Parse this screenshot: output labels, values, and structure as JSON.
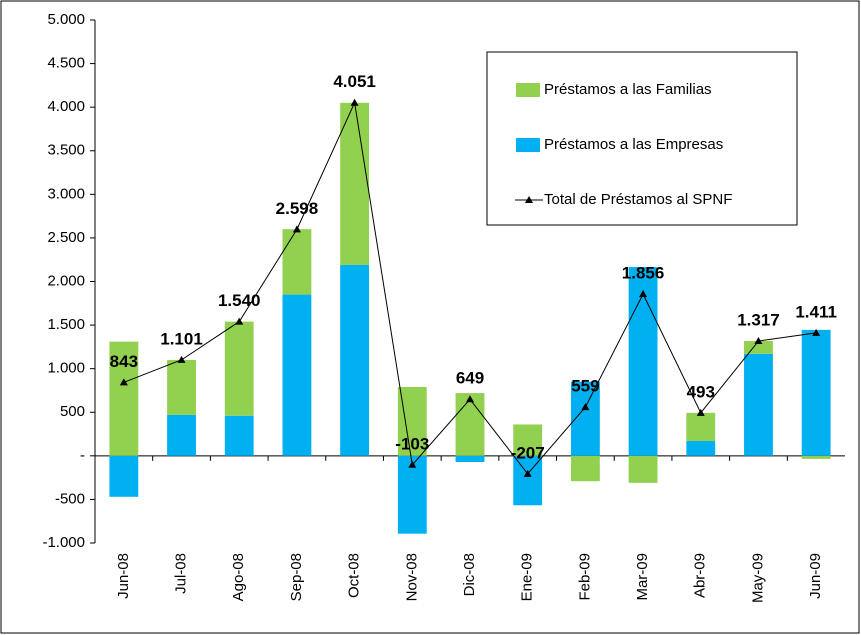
{
  "chart_data": {
    "type": "bar",
    "stacked": true,
    "categories": [
      "Jun-08",
      "Jul-08",
      "Ago-08",
      "Sep-08",
      "Oct-08",
      "Nov-08",
      "Dic-08",
      "Ene-09",
      "Feb-09",
      "Mar-09",
      "Abr-09",
      "May-09",
      "Jun-09"
    ],
    "series": [
      {
        "name": "Préstamos a las Familias",
        "type": "bar",
        "color": "#92d050",
        "values": [
          1310,
          630,
          1080,
          750,
          1860,
          790,
          720,
          360,
          -291,
          -310,
          323,
          147,
          -35
        ]
      },
      {
        "name": "Préstamos a las Empresas",
        "type": "bar",
        "color": "#00b0f0",
        "values": [
          -470,
          470,
          460,
          1850,
          2190,
          -893,
          -71,
          -567,
          850,
          2166,
          170,
          1170,
          1445
        ]
      },
      {
        "name": "Total de Préstamos al SPNF",
        "type": "line",
        "color": "#000000",
        "values": [
          843,
          1101,
          1540,
          2598,
          4051,
          -103,
          649,
          -207,
          559,
          1856,
          493,
          1317,
          1411
        ],
        "value_labels": [
          "843",
          "1.101",
          "1.540",
          "2.598",
          "4.051",
          "-103",
          "649",
          "-207",
          "559",
          "1.856",
          "493",
          "1.317",
          "1.411"
        ]
      }
    ],
    "ylim": [
      -1000,
      5000
    ],
    "yticks": [
      {
        "value": -1000,
        "label": "-1.000"
      },
      -500,
      {
        "value": 0,
        "label": "-"
      },
      500,
      {
        "value": 1000,
        "label": "1.000"
      },
      {
        "value": 1500,
        "label": "1.500"
      },
      {
        "value": 2000,
        "label": "2.000"
      },
      {
        "value": 2500,
        "label": "2.500"
      },
      {
        "value": 3000,
        "label": "3.000"
      },
      {
        "value": 3500,
        "label": "3.500"
      },
      {
        "value": 4000,
        "label": "4.000"
      },
      {
        "value": 4500,
        "label": "4.500"
      },
      {
        "value": 5000,
        "label": "5.000"
      }
    ],
    "grid": false,
    "legend": "upper right"
  }
}
